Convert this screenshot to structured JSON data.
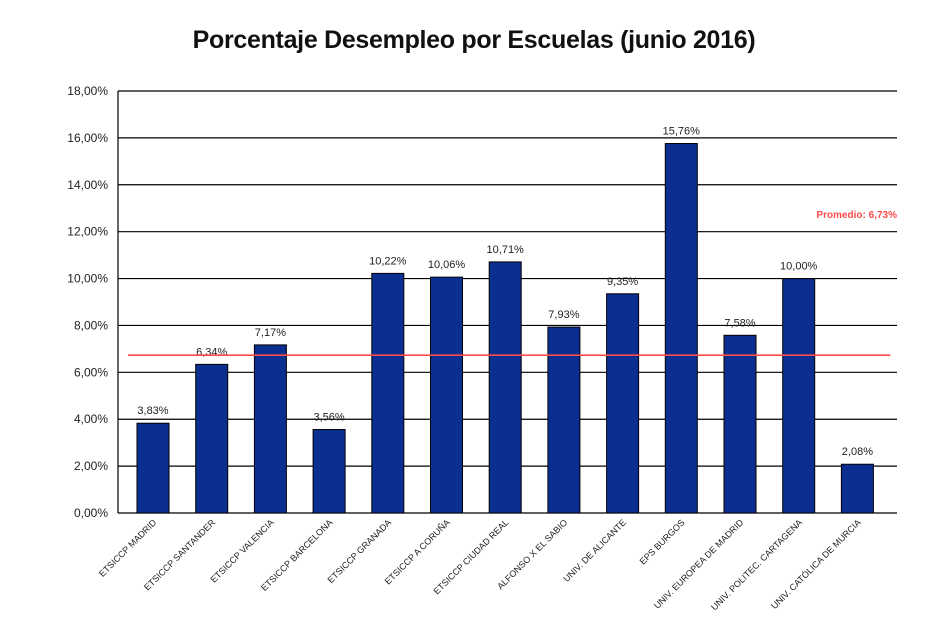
{
  "chart_data": {
    "type": "bar",
    "title": "Porcentaje Desempleo por Escuelas (junio 2016)",
    "categories": [
      "ETSICCP MADRID",
      "ETSICCP SANTANDER",
      "ETSICCP VALENCIA",
      "ETSICCP BARCELONA",
      "ETSICCP GRANADA",
      "ETSICCP A CORUÑA",
      "ETSICCP CIUDAD REAL",
      "ALFONSO X EL SABIO",
      "UNIV. DE ALICANTE",
      "EPS BURGOS",
      "UNIV. EUROPEA DE MADRID",
      "UNIV. POLITEC. CARTAGENA",
      "UNIV. CATÓLICA DE MURCIA"
    ],
    "values": [
      3.83,
      6.34,
      7.17,
      3.56,
      10.22,
      10.06,
      10.71,
      7.93,
      9.35,
      15.76,
      7.58,
      10.0,
      2.08
    ],
    "data_labels": [
      "3,83%",
      "6,34%",
      "7,17%",
      "3,56%",
      "10,22%",
      "10,06%",
      "10,71%",
      "7,93%",
      "9,35%",
      "15,76%",
      "7,58%",
      "10,00%",
      "2,08%"
    ],
    "ylim": [
      0,
      18
    ],
    "yticks": [
      0,
      2,
      4,
      6,
      8,
      10,
      12,
      14,
      16,
      18
    ],
    "ytick_labels": [
      "0,00%",
      "2,00%",
      "4,00%",
      "6,00%",
      "8,00%",
      "10,00%",
      "12,00%",
      "14,00%",
      "16,00%",
      "18,00%"
    ],
    "average": {
      "value": 6.73,
      "label": "Promedio: 6,73%"
    },
    "grid": true,
    "legend": "none",
    "colors": {
      "bar": "#0a2f91",
      "bar_outline": "#000000",
      "average_line": "#ff4a4a",
      "grid": "#000000"
    }
  }
}
